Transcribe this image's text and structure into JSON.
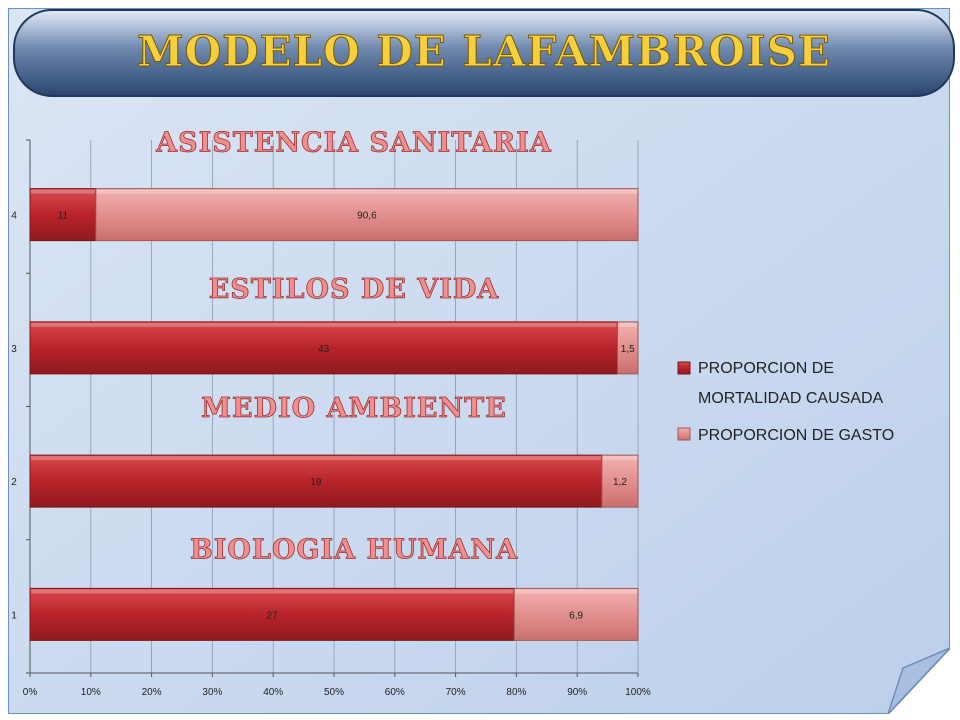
{
  "title": "MODELO DE LAFAMBROISE",
  "colors": {
    "background": "#c9d8ee",
    "mortality": "#b8242a",
    "spending": "#e3908f",
    "banner": "#2f4d75",
    "title_fill": "#f5cf3e",
    "category_title": "#ef8f8f"
  },
  "chart_data": {
    "type": "bar",
    "orientation": "horizontal",
    "stacked": "percent",
    "categories": [
      "1",
      "2",
      "3",
      "4"
    ],
    "category_titles": [
      "BIOLOGIA HUMANA",
      "MEDIO AMBIENTE",
      "ESTILOS DE VIDA",
      "ASISTENCIA SANITARIA"
    ],
    "series": [
      {
        "name": "PROPORCION DE MORTALIDAD CAUSADA",
        "values": [
          27,
          19,
          43,
          11
        ],
        "labels": [
          "27",
          "19",
          "43",
          "11"
        ]
      },
      {
        "name": "PROPORCION DE GASTO",
        "values": [
          6.9,
          1.2,
          1.5,
          90.6
        ],
        "labels": [
          "6,9",
          "1,2",
          "1,5",
          "90,6"
        ]
      }
    ],
    "x_ticks": [
      "0%",
      "10%",
      "20%",
      "30%",
      "40%",
      "50%",
      "60%",
      "70%",
      "80%",
      "90%",
      "100%"
    ],
    "xlim": [
      0,
      100
    ],
    "grid": true,
    "legend_position": "right"
  }
}
